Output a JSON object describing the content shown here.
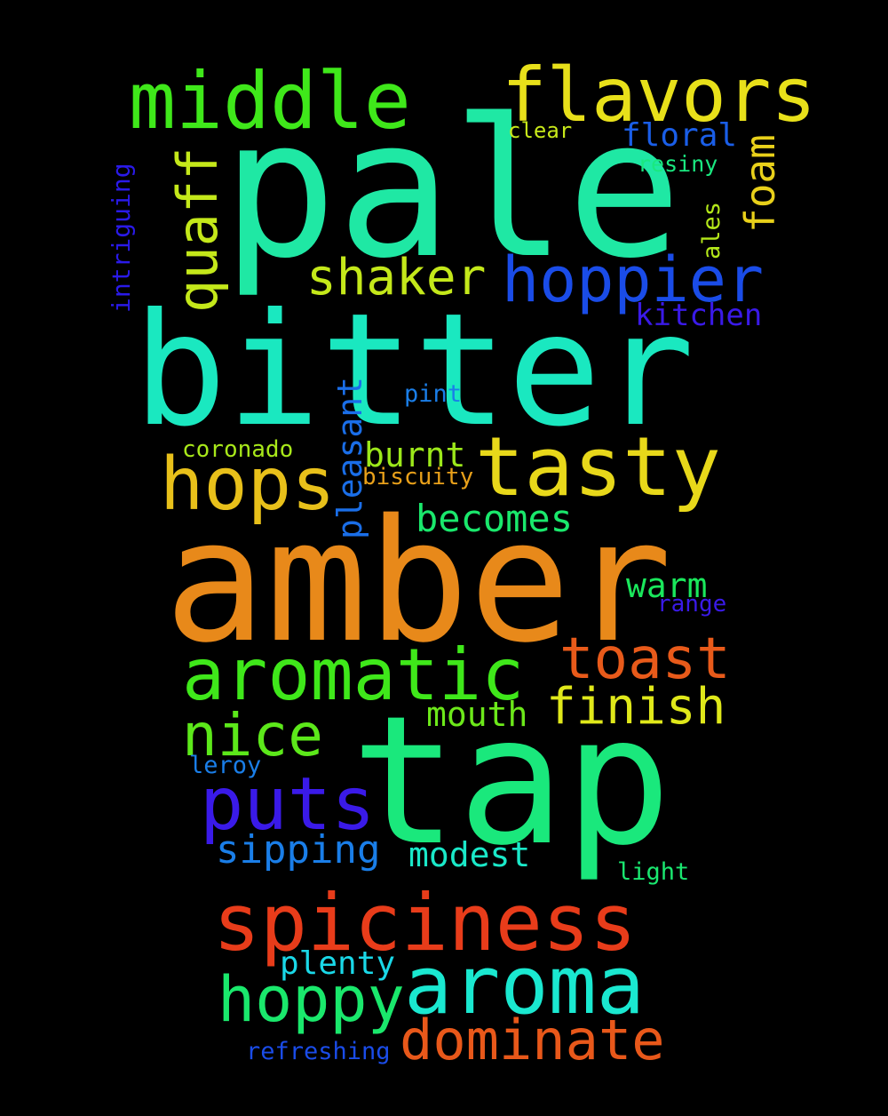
{
  "words": {
    "pale": {
      "text": "pale",
      "color": "#1fe8a4"
    },
    "bitter": {
      "text": "bitter",
      "color": "#1ae8c0"
    },
    "amber": {
      "text": "amber",
      "color": "#e8891a"
    },
    "tap": {
      "text": "tap",
      "color": "#1ae87c"
    },
    "middle": {
      "text": "middle",
      "color": "#3fe81a"
    },
    "flavors": {
      "text": "flavors",
      "color": "#e8e01a"
    },
    "hoppier": {
      "text": "hoppier",
      "color": "#1a4ce8"
    },
    "shaker": {
      "text": "shaker",
      "color": "#c4e81a"
    },
    "tasty": {
      "text": "tasty",
      "color": "#e8d81a"
    },
    "hops": {
      "text": "hops",
      "color": "#e8c01a"
    },
    "aromatic": {
      "text": "aromatic",
      "color": "#3fe81a"
    },
    "toast": {
      "text": "toast",
      "color": "#e85a1a"
    },
    "finish": {
      "text": "finish",
      "color": "#e0e81a"
    },
    "nice": {
      "text": "nice",
      "color": "#5ce81a"
    },
    "puts": {
      "text": "puts",
      "color": "#3a1ae8"
    },
    "spiciness": {
      "text": "spiciness",
      "color": "#e83c1a"
    },
    "aroma": {
      "text": "aroma",
      "color": "#1ae8d0"
    },
    "hoppy": {
      "text": "hoppy",
      "color": "#1ae86c"
    },
    "dominate": {
      "text": "dominate",
      "color": "#e8581a"
    },
    "floral": {
      "text": "floral",
      "color": "#1a5ee8"
    },
    "clear": {
      "text": "clear",
      "color": "#c8e81a"
    },
    "resiny": {
      "text": "resiny",
      "color": "#1ae880"
    },
    "kitchen": {
      "text": "kitchen",
      "color": "#3a1ae8"
    },
    "pint": {
      "text": "pint",
      "color": "#1a7ee8"
    },
    "coronado": {
      "text": "coronado",
      "color": "#a8e81a"
    },
    "burnt": {
      "text": "burnt",
      "color": "#9ce81a"
    },
    "biscuity": {
      "text": "biscuity",
      "color": "#e8a01a"
    },
    "becomes": {
      "text": "becomes",
      "color": "#1ae86c"
    },
    "warm": {
      "text": "warm",
      "color": "#1ae85c"
    },
    "range": {
      "text": "range",
      "color": "#3a1ae8"
    },
    "mouth": {
      "text": "mouth",
      "color": "#6ce81a"
    },
    "leroy": {
      "text": "leroy",
      "color": "#1a7ee8"
    },
    "sipping": {
      "text": "sipping",
      "color": "#1a7ee8"
    },
    "modest": {
      "text": "modest",
      "color": "#1ae8c8"
    },
    "light": {
      "text": "light",
      "color": "#1ae870"
    },
    "plenty": {
      "text": "plenty",
      "color": "#1ad8e8"
    },
    "refreshing": {
      "text": "refreshing",
      "color": "#1a4ce8"
    },
    "quaff": {
      "text": "quaff",
      "color": "#c4e81a"
    },
    "foam": {
      "text": "foam",
      "color": "#e8d01a"
    },
    "ales": {
      "text": "ales",
      "color": "#b4e81a"
    },
    "intriguing": {
      "text": "intriguing",
      "color": "#2a1ae8"
    },
    "pleasant": {
      "text": "pleasant",
      "color": "#1a6ee8"
    }
  }
}
